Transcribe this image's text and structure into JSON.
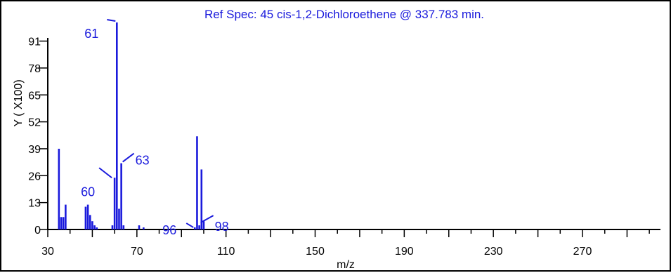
{
  "chart_data": {
    "type": "bar",
    "title": "Ref Spec:   45 cis-1,2-Dichloroethene @ 337.783 min.",
    "xlabel": "m/z",
    "ylabel": "Y ( X100)",
    "xlim": [
      30,
      305
    ],
    "ylim": [
      0,
      100
    ],
    "x_ticks": [
      30,
      70,
      110,
      150,
      190,
      230,
      270
    ],
    "y_ticks": [
      0,
      13,
      26,
      39,
      52,
      65,
      78,
      91
    ],
    "bar_color": "#1a1adc",
    "series": [
      {
        "x": [
          35,
          36,
          37,
          38,
          47,
          48,
          49,
          50,
          51,
          52,
          59,
          60,
          61,
          62,
          63,
          64,
          71,
          73,
          96,
          97,
          98,
          99,
          100
        ],
        "values": [
          39,
          6,
          6,
          12,
          11,
          12,
          7,
          4,
          2,
          1,
          2,
          25,
          100,
          10,
          32,
          2,
          2,
          1,
          1,
          45,
          2,
          29,
          4
        ]
      }
    ],
    "annotations": [
      {
        "text": "61",
        "x": 61
      },
      {
        "text": "60",
        "x": 60
      },
      {
        "text": "63",
        "x": 63
      },
      {
        "text": "96",
        "x": 96
      },
      {
        "text": "98",
        "x": 98
      }
    ]
  }
}
